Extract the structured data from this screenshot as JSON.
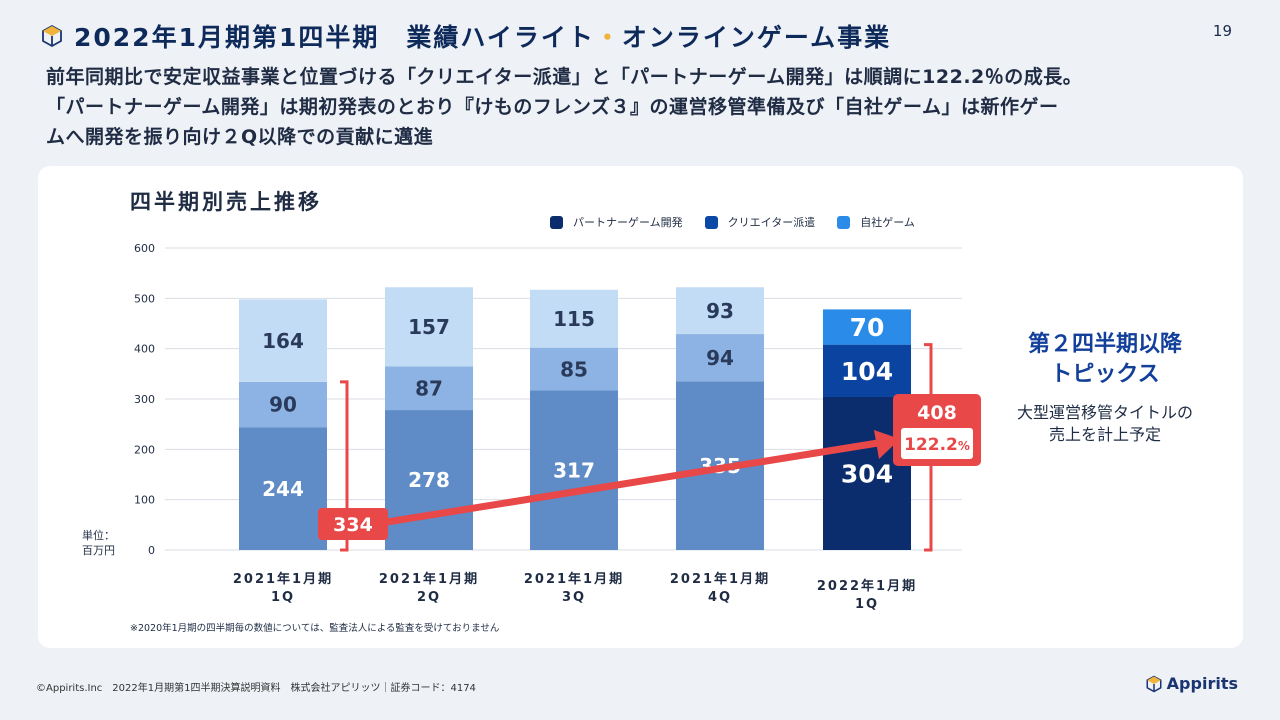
{
  "header": {
    "title_main": "2022年1月期第1四半期　業績ハイライト",
    "title_dot": "・",
    "title_sub": "オンラインゲーム事業",
    "page_number": "19",
    "subtitle_lines": [
      "前年同期比で安定収益事業と位置づける「クリエイター派遣」と「パートナーゲーム開発」は順調に122.2％の成長。",
      "「パートナーゲーム開発」は期初発表のとおり『けものフレンズ３』の運営移管準備及び「自社ゲーム」は新作ゲー",
      "ムへ開発を振り向け２Q以降での貢献に邁進"
    ]
  },
  "chart_data": {
    "type": "bar",
    "stacked": true,
    "title": "四半期別売上推移",
    "unit_label": [
      "単位：",
      "百万円"
    ],
    "ylim": [
      0,
      600
    ],
    "yticks": [
      0,
      100,
      200,
      300,
      400,
      500,
      600
    ],
    "categories": [
      [
        "2021年1月期",
        "1Q"
      ],
      [
        "2021年1月期",
        "2Q"
      ],
      [
        "2021年1月期",
        "3Q"
      ],
      [
        "2021年1月期",
        "4Q"
      ],
      [
        "2022年1月期",
        "1Q"
      ]
    ],
    "legend": [
      "パートナーゲーム開発",
      "クリエイター派遣",
      "自社ゲーム"
    ],
    "series": [
      {
        "name": "パートナーゲーム開発",
        "values": [
          244,
          278,
          317,
          335,
          304
        ]
      },
      {
        "name": "クリエイター派遣",
        "values": [
          90,
          87,
          85,
          94,
          104
        ]
      },
      {
        "name": "自社ゲーム",
        "values": [
          164,
          157,
          115,
          93,
          70
        ]
      }
    ],
    "colors": {
      "legend": [
        "#0b2d6e",
        "#0a4aa6",
        "#2a8ce8"
      ],
      "past": [
        "#5f8bc6",
        "#8cb3e3",
        "#c2dcf6"
      ],
      "current": [
        "#0b2d6e",
        "#0a43a0",
        "#2a8ce8"
      ]
    },
    "comparison": {
      "from_label": "334",
      "to_label": "408",
      "growth_label": "122.2",
      "growth_unit": "%",
      "from_value": 334,
      "to_value": 408,
      "color": "#e84848"
    },
    "footnote": "※2020年1月期の四半期毎の数値については、監査法人による監査を受けておりません"
  },
  "topics": {
    "heading_lines": [
      "第２四半期以降",
      "トピックス"
    ],
    "body_lines": [
      "大型運営移管タイトルの",
      "売上を計上予定"
    ]
  },
  "footer": {
    "copyright": "©Appirits.Inc　2022年1月期第1四半期決算説明資料　株式会社アピリッツ｜証券コード：4174",
    "brand": "Appirits"
  }
}
